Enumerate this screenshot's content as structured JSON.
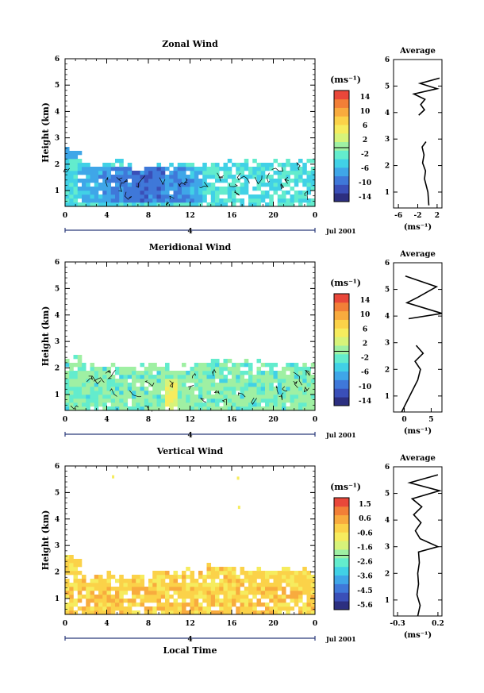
{
  "chart_data": [
    {
      "type": "heatmap",
      "title": "Zonal Wind",
      "ylabel": "Height (km)",
      "xticks": [
        "0",
        "4",
        "8",
        "12",
        "16",
        "20",
        "0"
      ],
      "yticks": [
        "1",
        "2",
        "3",
        "4",
        "5",
        "6"
      ],
      "xlim": [
        0,
        24
      ],
      "ylim": [
        0.4,
        6.0
      ],
      "date_marker": "4",
      "date_label": "Jul 2001",
      "colorbar": {
        "unit": "(ms⁻¹)",
        "ticks": [
          "14",
          "10",
          "6",
          "2",
          "-2",
          "-6",
          "-10",
          "-14"
        ],
        "vmin": -16,
        "vmax": 16
      },
      "cover_top_km": [
        2.7,
        2.6,
        2.15,
        2.1,
        2.1,
        2.2,
        2.1,
        1.8,
        2.0,
        2.05,
        2.0,
        2.05,
        2.2,
        2.1,
        2.0,
        2.1,
        2.2,
        2.15,
        2.3,
        2.2,
        2.2,
        2.25,
        2.3,
        2.25,
        2.3
      ],
      "profile": {
        "title": "Average",
        "xticks": [
          "-6",
          "-2",
          "2"
        ],
        "xlim": [
          -7,
          3
        ],
        "xlabel": "(ms⁻¹)",
        "height_km": [
          0.5,
          1.0,
          1.5,
          1.8,
          2.1,
          2.4,
          2.7,
          2.9,
          3.9,
          4.1,
          4.3,
          4.5,
          4.7,
          4.9,
          5.1,
          5.3
        ],
        "value": [
          0.3,
          0.1,
          -0.6,
          -0.4,
          -1.0,
          -0.7,
          -1.1,
          -0.3,
          -1.8,
          -0.6,
          -1.4,
          -0.5,
          -2.8,
          2.0,
          -1.5,
          2.5
        ]
      }
    },
    {
      "type": "heatmap",
      "title": "Meridional Wind",
      "ylabel": "Height (km)",
      "xticks": [
        "0",
        "4",
        "8",
        "12",
        "16",
        "20",
        "0"
      ],
      "yticks": [
        "1",
        "2",
        "3",
        "4",
        "5",
        "6"
      ],
      "xlim": [
        0,
        24
      ],
      "ylim": [
        0.4,
        6.0
      ],
      "date_marker": "4",
      "date_label": "Jul 2001",
      "colorbar": {
        "unit": "(ms⁻¹)",
        "ticks": [
          "14",
          "10",
          "6",
          "2",
          "-2",
          "-6",
          "-10",
          "-14"
        ],
        "vmin": -16,
        "vmax": 16
      },
      "cover_top_km": [
        2.6,
        2.65,
        2.3,
        2.2,
        2.2,
        2.1,
        2.15,
        2.2,
        2.15,
        2.2,
        2.25,
        2.2,
        2.3,
        2.3,
        2.35,
        2.4,
        2.45,
        2.4,
        2.35,
        2.3,
        2.3,
        2.25,
        2.3,
        2.2,
        2.2
      ],
      "profile": {
        "title": "Average",
        "xticks": [
          "0",
          "5"
        ],
        "xlim": [
          -2,
          7
        ],
        "xlabel": "(ms⁻¹)",
        "height_km": [
          0.4,
          0.8,
          1.2,
          1.6,
          2.0,
          2.3,
          2.6,
          2.9,
          3.9,
          4.1,
          4.5,
          4.7,
          5.1,
          5.5
        ],
        "value": [
          -0.5,
          0.5,
          1.5,
          2.5,
          3.0,
          2.0,
          3.5,
          2.2,
          0.8,
          7.0,
          0.5,
          2.5,
          6.0,
          0.2
        ]
      }
    },
    {
      "type": "heatmap",
      "title": "Vertical Wind",
      "xlabel": "Local Time",
      "ylabel": "Height (km)",
      "xticks": [
        "0",
        "4",
        "8",
        "12",
        "16",
        "20",
        "0"
      ],
      "yticks": [
        "1",
        "2",
        "3",
        "4",
        "5",
        "6"
      ],
      "xlim": [
        0,
        24
      ],
      "ylim": [
        0.4,
        6.0
      ],
      "date_marker": "4",
      "date_label": "Jul 2001",
      "colorbar": {
        "unit": "(ms⁻¹)",
        "ticks": [
          "1.5",
          "0.6",
          "-0.6",
          "-1.6",
          "-2.6",
          "-3.6",
          "-4.5",
          "-5.6"
        ],
        "vmin": -6,
        "vmax": 2
      },
      "cover_top_km": [
        2.7,
        2.65,
        1.9,
        1.95,
        2.0,
        1.9,
        1.8,
        2.0,
        1.9,
        2.05,
        2.0,
        2.15,
        2.2,
        2.2,
        2.3,
        2.35,
        2.3,
        2.25,
        2.2,
        2.25,
        2.1,
        2.2,
        2.1,
        2.15,
        2.1
      ],
      "profile": {
        "title": "Average",
        "xticks": [
          "-0.3",
          "0.2"
        ],
        "xlim": [
          -0.35,
          0.25
        ],
        "xlabel": "(ms⁻¹)",
        "height_km": [
          0.4,
          0.8,
          1.2,
          1.6,
          2.0,
          2.4,
          2.8,
          3.0,
          3.3,
          3.6,
          3.9,
          4.2,
          4.5,
          4.8,
          5.1,
          5.4,
          5.7
        ],
        "value": [
          -0.05,
          -0.02,
          -0.06,
          -0.04,
          -0.05,
          -0.03,
          -0.04,
          0.2,
          -0.02,
          -0.08,
          -0.01,
          -0.1,
          0.0,
          -0.12,
          0.22,
          -0.15,
          0.2
        ]
      }
    }
  ]
}
